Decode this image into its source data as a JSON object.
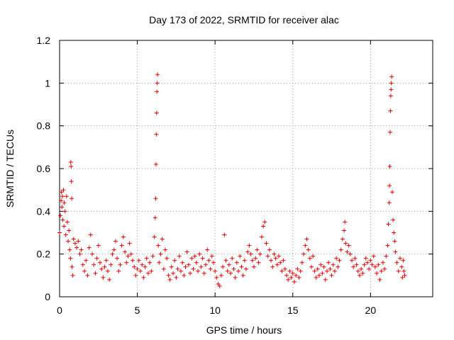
{
  "chart_data": {
    "type": "scatter",
    "title": "Day 173 of 2022, SRMTID for receiver alac",
    "xlabel": "GPS time / hours",
    "ylabel": "SRMTID / TECUs",
    "xlim": [
      0,
      24
    ],
    "ylim": [
      0,
      1.2
    ],
    "xticks": [
      0,
      5,
      10,
      15,
      20
    ],
    "xtick_labels": [
      "0",
      "5",
      "10",
      "15",
      "20"
    ],
    "yticks": [
      0,
      0.2,
      0.4,
      0.6,
      0.8,
      1.0,
      1.2
    ],
    "ytick_labels": [
      "0",
      "0.2",
      "0.4",
      "0.6",
      "0.8",
      "1",
      "1.2"
    ],
    "grid": true,
    "marker": "+",
    "marker_color": "#e60000",
    "series": [
      {
        "name": "SRMTID",
        "points": [
          [
            0.0,
            0.3
          ],
          [
            0.05,
            0.38
          ],
          [
            0.1,
            0.45
          ],
          [
            0.12,
            0.49
          ],
          [
            0.15,
            0.42
          ],
          [
            0.18,
            0.47
          ],
          [
            0.2,
            0.36
          ],
          [
            0.25,
            0.5
          ],
          [
            0.28,
            0.33
          ],
          [
            0.3,
            0.44
          ],
          [
            0.35,
            0.4
          ],
          [
            0.4,
            0.29
          ],
          [
            0.45,
            0.47
          ],
          [
            0.5,
            0.35
          ],
          [
            0.55,
            0.26
          ],
          [
            0.6,
            0.31
          ],
          [
            0.65,
            0.22
          ],
          [
            0.7,
            0.18
          ],
          [
            0.72,
            0.63
          ],
          [
            0.74,
            0.61
          ],
          [
            0.76,
            0.54
          ],
          [
            0.78,
            0.46
          ],
          [
            0.8,
            0.14
          ],
          [
            0.85,
            0.1
          ],
          [
            0.9,
            0.27
          ],
          [
            1.0,
            0.25
          ],
          [
            1.1,
            0.23
          ],
          [
            1.2,
            0.26
          ],
          [
            1.3,
            0.2
          ],
          [
            1.4,
            0.22
          ],
          [
            1.5,
            0.15
          ],
          [
            1.6,
            0.12
          ],
          [
            1.7,
            0.17
          ],
          [
            1.8,
            0.1
          ],
          [
            1.9,
            0.23
          ],
          [
            2.0,
            0.29
          ],
          [
            2.1,
            0.2
          ],
          [
            2.2,
            0.15
          ],
          [
            2.3,
            0.11
          ],
          [
            2.4,
            0.18
          ],
          [
            2.5,
            0.24
          ],
          [
            2.6,
            0.16
          ],
          [
            2.7,
            0.13
          ],
          [
            2.8,
            0.09
          ],
          [
            2.9,
            0.14
          ],
          [
            3.0,
            0.17
          ],
          [
            3.1,
            0.12
          ],
          [
            3.2,
            0.08
          ],
          [
            3.3,
            0.15
          ],
          [
            3.4,
            0.2
          ],
          [
            3.5,
            0.22
          ],
          [
            3.6,
            0.26
          ],
          [
            3.7,
            0.18
          ],
          [
            3.8,
            0.12
          ],
          [
            3.9,
            0.15
          ],
          [
            4.0,
            0.24
          ],
          [
            4.1,
            0.28
          ],
          [
            4.2,
            0.21
          ],
          [
            4.3,
            0.16
          ],
          [
            4.4,
            0.19
          ],
          [
            4.5,
            0.25
          ],
          [
            4.6,
            0.2
          ],
          [
            4.7,
            0.17
          ],
          [
            4.8,
            0.14
          ],
          [
            4.9,
            0.1
          ],
          [
            5.0,
            0.13
          ],
          [
            5.1,
            0.17
          ],
          [
            5.2,
            0.12
          ],
          [
            5.3,
            0.15
          ],
          [
            5.4,
            0.09
          ],
          [
            5.5,
            0.14
          ],
          [
            5.6,
            0.18
          ],
          [
            5.7,
            0.11
          ],
          [
            5.8,
            0.16
          ],
          [
            5.9,
            0.12
          ],
          [
            6.0,
            0.19
          ],
          [
            6.1,
            0.28
          ],
          [
            6.15,
            0.37
          ],
          [
            6.18,
            0.46
          ],
          [
            6.2,
            0.62
          ],
          [
            6.22,
            0.76
          ],
          [
            6.24,
            0.86
          ],
          [
            6.26,
            0.96
          ],
          [
            6.28,
            1.0
          ],
          [
            6.3,
            1.04
          ],
          [
            6.35,
            0.24
          ],
          [
            6.4,
            0.16
          ],
          [
            6.5,
            0.2
          ],
          [
            6.6,
            0.27
          ],
          [
            6.7,
            0.13
          ],
          [
            6.8,
            0.22
          ],
          [
            6.9,
            0.18
          ],
          [
            7.0,
            0.1
          ],
          [
            7.1,
            0.08
          ],
          [
            7.2,
            0.14
          ],
          [
            7.3,
            0.11
          ],
          [
            7.4,
            0.17
          ],
          [
            7.5,
            0.09
          ],
          [
            7.6,
            0.13
          ],
          [
            7.7,
            0.19
          ],
          [
            7.8,
            0.12
          ],
          [
            7.9,
            0.16
          ],
          [
            8.0,
            0.1
          ],
          [
            8.1,
            0.14
          ],
          [
            8.2,
            0.21
          ],
          [
            8.3,
            0.15
          ],
          [
            8.4,
            0.11
          ],
          [
            8.5,
            0.18
          ],
          [
            8.6,
            0.13
          ],
          [
            8.7,
            0.19
          ],
          [
            8.8,
            0.16
          ],
          [
            8.9,
            0.12
          ],
          [
            9.0,
            0.2
          ],
          [
            9.1,
            0.14
          ],
          [
            9.2,
            0.18
          ],
          [
            9.3,
            0.11
          ],
          [
            9.4,
            0.15
          ],
          [
            9.5,
            0.22
          ],
          [
            9.6,
            0.17
          ],
          [
            9.7,
            0.13
          ],
          [
            9.8,
            0.19
          ],
          [
            9.9,
            0.16
          ],
          [
            10.0,
            0.12
          ],
          [
            10.1,
            0.09
          ],
          [
            10.2,
            0.06
          ],
          [
            10.3,
            0.05
          ],
          [
            10.4,
            0.1
          ],
          [
            10.5,
            0.14
          ],
          [
            10.6,
            0.29
          ],
          [
            10.7,
            0.17
          ],
          [
            10.8,
            0.12
          ],
          [
            10.9,
            0.15
          ],
          [
            11.0,
            0.11
          ],
          [
            11.1,
            0.18
          ],
          [
            11.2,
            0.13
          ],
          [
            11.3,
            0.09
          ],
          [
            11.4,
            0.16
          ],
          [
            11.5,
            0.12
          ],
          [
            11.6,
            0.19
          ],
          [
            11.7,
            0.14
          ],
          [
            11.8,
            0.1
          ],
          [
            11.9,
            0.17
          ],
          [
            12.0,
            0.13
          ],
          [
            12.1,
            0.21
          ],
          [
            12.2,
            0.24
          ],
          [
            12.3,
            0.2
          ],
          [
            12.4,
            0.17
          ],
          [
            12.5,
            0.14
          ],
          [
            12.6,
            0.18
          ],
          [
            12.7,
            0.22
          ],
          [
            12.8,
            0.16
          ],
          [
            12.9,
            0.2
          ],
          [
            13.0,
            0.28
          ],
          [
            13.1,
            0.33
          ],
          [
            13.2,
            0.35
          ],
          [
            13.3,
            0.25
          ],
          [
            13.4,
            0.19
          ],
          [
            13.5,
            0.22
          ],
          [
            13.6,
            0.17
          ],
          [
            13.7,
            0.14
          ],
          [
            13.8,
            0.2
          ],
          [
            13.9,
            0.18
          ],
          [
            14.0,
            0.15
          ],
          [
            14.1,
            0.19
          ],
          [
            14.2,
            0.16
          ],
          [
            14.3,
            0.12
          ],
          [
            14.4,
            0.17
          ],
          [
            14.5,
            0.13
          ],
          [
            14.6,
            0.1
          ],
          [
            14.7,
            0.08
          ],
          [
            14.8,
            0.12
          ],
          [
            14.9,
            0.09
          ],
          [
            15.0,
            0.11
          ],
          [
            15.1,
            0.07
          ],
          [
            15.2,
            0.1
          ],
          [
            15.3,
            0.13
          ],
          [
            15.4,
            0.09
          ],
          [
            15.5,
            0.12
          ],
          [
            15.6,
            0.16
          ],
          [
            15.7,
            0.2
          ],
          [
            15.8,
            0.24
          ],
          [
            15.9,
            0.27
          ],
          [
            16.0,
            0.22
          ],
          [
            16.1,
            0.18
          ],
          [
            16.2,
            0.14
          ],
          [
            16.3,
            0.19
          ],
          [
            16.4,
            0.12
          ],
          [
            16.5,
            0.09
          ],
          [
            16.6,
            0.13
          ],
          [
            16.7,
            0.1
          ],
          [
            16.8,
            0.15
          ],
          [
            16.9,
            0.11
          ],
          [
            17.0,
            0.14
          ],
          [
            17.1,
            0.08
          ],
          [
            17.2,
            0.12
          ],
          [
            17.3,
            0.16
          ],
          [
            17.4,
            0.13
          ],
          [
            17.5,
            0.1
          ],
          [
            17.6,
            0.15
          ],
          [
            17.7,
            0.12
          ],
          [
            17.8,
            0.18
          ],
          [
            17.9,
            0.14
          ],
          [
            18.0,
            0.17
          ],
          [
            18.1,
            0.22
          ],
          [
            18.2,
            0.27
          ],
          [
            18.3,
            0.31
          ],
          [
            18.35,
            0.35
          ],
          [
            18.4,
            0.25
          ],
          [
            18.5,
            0.21
          ],
          [
            18.6,
            0.24
          ],
          [
            18.7,
            0.2
          ],
          [
            18.8,
            0.17
          ],
          [
            18.9,
            0.14
          ],
          [
            19.0,
            0.18
          ],
          [
            19.1,
            0.15
          ],
          [
            19.2,
            0.12
          ],
          [
            19.3,
            0.1
          ],
          [
            19.4,
            0.13
          ],
          [
            19.5,
            0.11
          ],
          [
            19.6,
            0.15
          ],
          [
            19.7,
            0.18
          ],
          [
            19.8,
            0.16
          ],
          [
            19.9,
            0.13
          ],
          [
            20.0,
            0.17
          ],
          [
            20.1,
            0.15
          ],
          [
            20.2,
            0.19
          ],
          [
            20.3,
            0.14
          ],
          [
            20.4,
            0.11
          ],
          [
            20.5,
            0.15
          ],
          [
            20.6,
            0.08
          ],
          [
            20.7,
            0.12
          ],
          [
            20.8,
            0.16
          ],
          [
            20.9,
            0.13
          ],
          [
            21.0,
            0.19
          ],
          [
            21.1,
            0.24
          ],
          [
            21.15,
            0.34
          ],
          [
            21.2,
            0.44
          ],
          [
            21.22,
            0.52
          ],
          [
            21.24,
            0.61
          ],
          [
            21.26,
            0.77
          ],
          [
            21.28,
            0.87
          ],
          [
            21.3,
            0.94
          ],
          [
            21.32,
            0.97
          ],
          [
            21.34,
            1.0
          ],
          [
            21.36,
            1.03
          ],
          [
            21.4,
            0.49
          ],
          [
            21.45,
            0.36
          ],
          [
            21.5,
            0.3
          ],
          [
            21.55,
            0.26
          ],
          [
            21.6,
            0.21
          ],
          [
            21.7,
            0.16
          ],
          [
            21.8,
            0.12
          ],
          [
            21.9,
            0.18
          ],
          [
            22.0,
            0.14
          ],
          [
            22.05,
            0.09
          ],
          [
            22.1,
            0.17
          ],
          [
            22.15,
            0.12
          ],
          [
            22.2,
            0.1
          ]
        ]
      }
    ]
  }
}
